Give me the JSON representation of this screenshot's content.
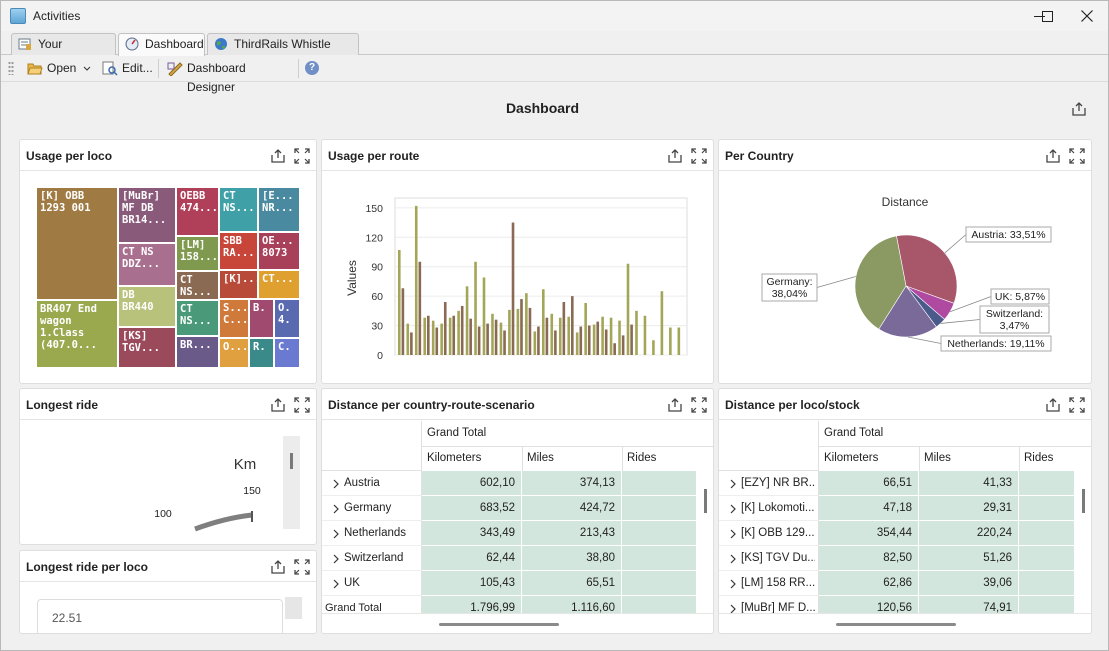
{
  "window": {
    "title": "Activities",
    "minimize": "—",
    "maximize": "☐",
    "close": "✕"
  },
  "tabs": [
    {
      "label": "Your Activities"
    },
    {
      "label": "Dashboard"
    },
    {
      "label": "ThirdRails Whistle Board"
    }
  ],
  "toolbar": {
    "open": "Open",
    "edit": "Edit...",
    "designer": "Dashboard Designer",
    "help": "?"
  },
  "dashboard": {
    "title": "Dashboard"
  },
  "panels": {
    "loco": {
      "title": "Usage per loco"
    },
    "route": {
      "title": "Usage per route"
    },
    "country": {
      "title": "Per Country"
    },
    "longest": {
      "title": "Longest ride"
    },
    "longest_loco": {
      "title": "Longest ride per loco"
    },
    "dist_country": {
      "title": "Distance per country-route-scenario"
    },
    "dist_loco": {
      "title": "Distance per loco/stock"
    }
  },
  "treemap": [
    {
      "label": "[K] OBB\n1293 001",
      "color": "#a07a43"
    },
    {
      "label": "BR407 End\nwagon\n1.Class\n(407.0...",
      "color": "#9aa84e"
    },
    {
      "label": "[MuBr]\nMF DB\nBR14...",
      "color": "#8a5a7a"
    },
    {
      "label": "CT NS\nDDZ...",
      "color": "#a96f8e"
    },
    {
      "label": "DB\nBR440",
      "color": "#b8c27a"
    },
    {
      "label": "[KS]\nTGV...",
      "color": "#9a4a5a"
    },
    {
      "label": "OEBB\n474...",
      "color": "#b0405a"
    },
    {
      "label": "[LM]\n158...",
      "color": "#7f9a4e"
    },
    {
      "label": "CT\nNS...",
      "color": "#8a6a52"
    },
    {
      "label": "CT\nNS...",
      "color": "#4a9a7a"
    },
    {
      "label": "BR...",
      "color": "#6a5a8a"
    },
    {
      "label": "CT\nNS...",
      "color": "#3fa0a8"
    },
    {
      "label": "SBB\nRA...",
      "color": "#c8453a"
    },
    {
      "label": "[K]...",
      "color": "#b84a3a"
    },
    {
      "label": "S...\nC...",
      "color": "#cf7a3a"
    },
    {
      "label": "O...",
      "color": "#e0a040"
    },
    {
      "label": "[E...\nNR...",
      "color": "#4a8aa0"
    },
    {
      "label": "OE...\n8073",
      "color": "#a8405a"
    },
    {
      "label": "CT...",
      "color": "#e0a030"
    },
    {
      "label": "B.",
      "color": "#a04a70"
    },
    {
      "label": "O.\n4.",
      "color": "#5a6ab0"
    },
    {
      "label": "R.",
      "color": "#3a8a8a"
    },
    {
      "label": "C.",
      "color": "#6a7ad0"
    }
  ],
  "chart_data": [
    {
      "type": "bar",
      "title": "",
      "xlabel": "",
      "ylabel": "Values",
      "ylim": [
        0,
        160
      ],
      "yticks": [
        "150",
        "120",
        "90",
        "60",
        "30",
        "0"
      ],
      "series": [
        {
          "color": "#a3a656",
          "values": [
            107,
            32,
            152,
            38,
            35,
            32,
            38,
            45,
            70,
            95,
            79,
            42,
            33,
            46,
            47,
            63,
            24,
            67,
            42,
            38,
            39,
            23,
            53,
            31,
            39,
            38,
            35,
            93,
            45,
            40,
            15,
            65,
            28,
            28
          ]
        },
        {
          "color": "#8a6a52",
          "values": [
            68,
            23,
            95,
            40,
            28,
            54,
            40,
            50,
            37,
            29,
            32,
            36,
            25,
            135,
            57,
            48,
            29,
            38,
            25,
            54,
            60,
            29,
            30,
            34,
            26,
            12,
            20,
            31
          ]
        }
      ]
    },
    {
      "type": "pie",
      "title": "Distance",
      "slices": [
        {
          "label": "Austria: 33,51%",
          "value": 33.51,
          "color": "#a8566a"
        },
        {
          "label": "UK: 5,87%",
          "value": 5.87,
          "color": "#b04aa0"
        },
        {
          "label": "Switzerland: 3,47%",
          "value": 3.47,
          "color": "#4a5a8a"
        },
        {
          "label": "Netherlands: 19,11%",
          "value": 19.11,
          "color": "#7a6a9a"
        },
        {
          "label": "Germany: 38,04%",
          "value": 38.04,
          "color": "#8a9a62"
        }
      ]
    },
    {
      "type": "gauge",
      "title": "Km",
      "ticks": [
        "100",
        "150"
      ]
    }
  ],
  "grid_country": {
    "header": "Grand Total",
    "columns": [
      "Kilometers",
      "Miles",
      "Rides"
    ],
    "rows": [
      {
        "label": "Austria",
        "km": "602,10",
        "mi": "374,13",
        "rides": ""
      },
      {
        "label": "Germany",
        "km": "683,52",
        "mi": "424,72",
        "rides": ""
      },
      {
        "label": "Netherlands",
        "km": "343,49",
        "mi": "213,43",
        "rides": ""
      },
      {
        "label": "Switzerland",
        "km": "62,44",
        "mi": "38,80",
        "rides": ""
      },
      {
        "label": "UK",
        "km": "105,43",
        "mi": "65,51",
        "rides": ""
      },
      {
        "label": "Grand Total",
        "km": "1.796,99",
        "mi": "1.116,60",
        "rides": ""
      }
    ]
  },
  "grid_loco": {
    "header": "Grand Total",
    "columns": [
      "Kilometers",
      "Miles",
      "Rides"
    ],
    "rows": [
      {
        "label": "[EZY] NR BR...",
        "km": "66,51",
        "mi": "41,33",
        "rides": ""
      },
      {
        "label": "[K] Lokomoti...",
        "km": "47,18",
        "mi": "29,31",
        "rides": ""
      },
      {
        "label": "[K] OBB 129...",
        "km": "354,44",
        "mi": "220,24",
        "rides": ""
      },
      {
        "label": "[KS] TGV Du...",
        "km": "82,50",
        "mi": "51,26",
        "rides": ""
      },
      {
        "label": "[LM] 158 RR...",
        "km": "62,86",
        "mi": "39,06",
        "rides": ""
      },
      {
        "label": "[MuBr] MF D...",
        "km": "120,56",
        "mi": "74,91",
        "rides": ""
      }
    ]
  },
  "longest_loco": {
    "partial": "22.51"
  }
}
